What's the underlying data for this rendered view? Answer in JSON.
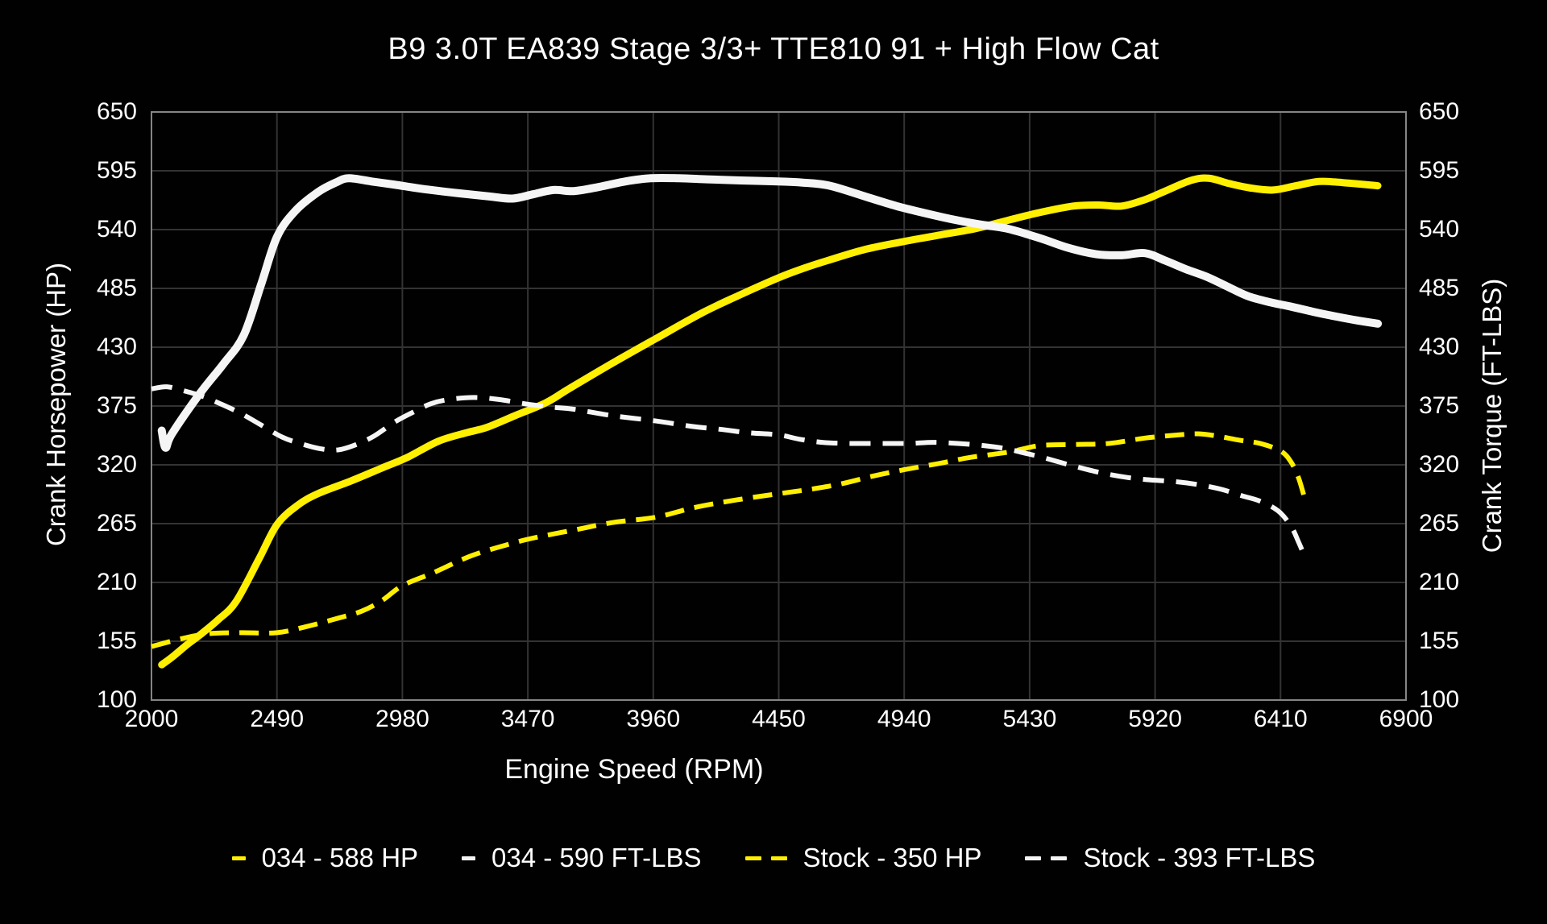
{
  "title": "B9 3.0T EA839 Stage 3/3+ TTE810 91 + High Flow Cat",
  "colors": {
    "background": "#010101",
    "grid": "#333333",
    "border": "#858585",
    "text": "#ffffff",
    "yellow": "#ffef00",
    "white": "#f5f5f5"
  },
  "chart_data": {
    "type": "line",
    "title": "B9 3.0T EA839 Stage 3/3+ TTE810 91 + High Flow Cat",
    "xlabel": "Engine Speed (RPM)",
    "ylabel_left": "Crank Horsepower (HP)",
    "ylabel_right": "Crank Torque (FT-LBS)",
    "xlim": [
      2000,
      6900
    ],
    "ylim": [
      100,
      650
    ],
    "x_ticks": [
      2000,
      2490,
      2980,
      3470,
      3960,
      4450,
      4940,
      5430,
      5920,
      6410,
      6900
    ],
    "y_ticks": [
      650,
      595,
      540,
      485,
      430,
      375,
      320,
      265,
      210,
      155,
      100
    ],
    "grid": true,
    "legend_position": "bottom",
    "series": [
      {
        "name": "034 - 588 HP",
        "color": "#ffef00",
        "style": "solid",
        "width": 9,
        "axis": "left",
        "points": [
          [
            2040,
            133
          ],
          [
            2080,
            140
          ],
          [
            2140,
            152
          ],
          [
            2190,
            161
          ],
          [
            2260,
            175
          ],
          [
            2330,
            192
          ],
          [
            2420,
            232
          ],
          [
            2490,
            264
          ],
          [
            2570,
            282
          ],
          [
            2650,
            293
          ],
          [
            2780,
            305
          ],
          [
            2900,
            317
          ],
          [
            3000,
            327
          ],
          [
            3120,
            342
          ],
          [
            3230,
            350
          ],
          [
            3310,
            355
          ],
          [
            3420,
            366
          ],
          [
            3540,
            378
          ],
          [
            3630,
            391
          ],
          [
            3800,
            415
          ],
          [
            3970,
            438
          ],
          [
            4150,
            462
          ],
          [
            4290,
            478
          ],
          [
            4450,
            495
          ],
          [
            4550,
            504
          ],
          [
            4640,
            511
          ],
          [
            4780,
            521
          ],
          [
            4920,
            528
          ],
          [
            5080,
            535
          ],
          [
            5220,
            541
          ],
          [
            5350,
            549
          ],
          [
            5470,
            556
          ],
          [
            5600,
            562
          ],
          [
            5700,
            563
          ],
          [
            5790,
            562
          ],
          [
            5880,
            568
          ],
          [
            5950,
            575
          ],
          [
            6060,
            586
          ],
          [
            6130,
            588
          ],
          [
            6210,
            583
          ],
          [
            6290,
            579
          ],
          [
            6380,
            577
          ],
          [
            6470,
            581
          ],
          [
            6560,
            585
          ],
          [
            6650,
            584
          ],
          [
            6790,
            581
          ]
        ]
      },
      {
        "name": "034 - 590 FT-LBS",
        "color": "#f5f5f5",
        "style": "solid",
        "width": 10,
        "axis": "right",
        "points": [
          [
            2040,
            352
          ],
          [
            2055,
            336
          ],
          [
            2080,
            349
          ],
          [
            2190,
            387
          ],
          [
            2280,
            414
          ],
          [
            2360,
            441
          ],
          [
            2430,
            490
          ],
          [
            2490,
            533
          ],
          [
            2560,
            557
          ],
          [
            2650,
            575
          ],
          [
            2720,
            584
          ],
          [
            2770,
            588
          ],
          [
            2860,
            585
          ],
          [
            2950,
            582
          ],
          [
            3060,
            578
          ],
          [
            3200,
            574
          ],
          [
            3320,
            571
          ],
          [
            3410,
            569
          ],
          [
            3490,
            573
          ],
          [
            3570,
            577
          ],
          [
            3650,
            576
          ],
          [
            3750,
            580
          ],
          [
            3850,
            585
          ],
          [
            3950,
            588
          ],
          [
            4060,
            588
          ],
          [
            4170,
            587
          ],
          [
            4300,
            586
          ],
          [
            4450,
            585
          ],
          [
            4540,
            584
          ],
          [
            4650,
            581
          ],
          [
            4800,
            570
          ],
          [
            4910,
            562
          ],
          [
            5010,
            556
          ],
          [
            5120,
            550
          ],
          [
            5230,
            545
          ],
          [
            5340,
            541
          ],
          [
            5470,
            532
          ],
          [
            5580,
            523
          ],
          [
            5690,
            517
          ],
          [
            5790,
            516
          ],
          [
            5880,
            518
          ],
          [
            5960,
            511
          ],
          [
            6040,
            503
          ],
          [
            6120,
            496
          ],
          [
            6200,
            487
          ],
          [
            6280,
            478
          ],
          [
            6370,
            472
          ],
          [
            6450,
            468
          ],
          [
            6540,
            463
          ],
          [
            6620,
            459
          ],
          [
            6710,
            455
          ],
          [
            6790,
            452
          ]
        ]
      },
      {
        "name": "Stock - 350 HP",
        "color": "#ffef00",
        "style": "dashed",
        "width": 6,
        "dash": "24 13",
        "axis": "left",
        "points": [
          [
            2000,
            150
          ],
          [
            2110,
            157
          ],
          [
            2220,
            162
          ],
          [
            2350,
            163
          ],
          [
            2490,
            163
          ],
          [
            2610,
            169
          ],
          [
            2720,
            176
          ],
          [
            2820,
            183
          ],
          [
            2900,
            193
          ],
          [
            2980,
            207
          ],
          [
            3100,
            219
          ],
          [
            3250,
            235
          ],
          [
            3400,
            246
          ],
          [
            3500,
            252
          ],
          [
            3650,
            259
          ],
          [
            3800,
            266
          ],
          [
            3970,
            271
          ],
          [
            4120,
            280
          ],
          [
            4280,
            287
          ],
          [
            4450,
            293
          ],
          [
            4570,
            297
          ],
          [
            4690,
            302
          ],
          [
            4810,
            309
          ],
          [
            4930,
            315
          ],
          [
            5070,
            321
          ],
          [
            5200,
            327
          ],
          [
            5350,
            332
          ],
          [
            5470,
            338
          ],
          [
            5610,
            339
          ],
          [
            5740,
            340
          ],
          [
            5880,
            345
          ],
          [
            6010,
            348
          ],
          [
            6090,
            349
          ],
          [
            6160,
            347
          ],
          [
            6250,
            343
          ],
          [
            6330,
            340
          ],
          [
            6410,
            333
          ],
          [
            6450,
            323
          ],
          [
            6480,
            308
          ],
          [
            6505,
            288
          ]
        ]
      },
      {
        "name": "Stock - 393 FT-LBS",
        "color": "#f5f5f5",
        "style": "dashed",
        "width": 6,
        "dash": "26 15",
        "axis": "right",
        "points": [
          [
            2000,
            391
          ],
          [
            2060,
            393
          ],
          [
            2130,
            389
          ],
          [
            2200,
            384
          ],
          [
            2270,
            377
          ],
          [
            2350,
            368
          ],
          [
            2430,
            357
          ],
          [
            2510,
            346
          ],
          [
            2580,
            340
          ],
          [
            2660,
            335
          ],
          [
            2730,
            334
          ],
          [
            2800,
            339
          ],
          [
            2870,
            347
          ],
          [
            2950,
            360
          ],
          [
            3020,
            369
          ],
          [
            3090,
            377
          ],
          [
            3160,
            381
          ],
          [
            3260,
            383
          ],
          [
            3360,
            381
          ],
          [
            3460,
            377
          ],
          [
            3560,
            374
          ],
          [
            3650,
            372
          ],
          [
            3800,
            366
          ],
          [
            3970,
            361
          ],
          [
            4110,
            356
          ],
          [
            4230,
            353
          ],
          [
            4330,
            350
          ],
          [
            4450,
            348
          ],
          [
            4530,
            344
          ],
          [
            4620,
            341
          ],
          [
            4720,
            340
          ],
          [
            4850,
            340
          ],
          [
            4960,
            340
          ],
          [
            5050,
            341
          ],
          [
            5150,
            340
          ],
          [
            5250,
            338
          ],
          [
            5340,
            335
          ],
          [
            5410,
            331
          ],
          [
            5480,
            327
          ],
          [
            5600,
            319
          ],
          [
            5720,
            312
          ],
          [
            5850,
            307
          ],
          [
            6010,
            304
          ],
          [
            6100,
            301
          ],
          [
            6180,
            297
          ],
          [
            6260,
            291
          ],
          [
            6330,
            286
          ],
          [
            6400,
            277
          ],
          [
            6450,
            263
          ],
          [
            6480,
            248
          ],
          [
            6510,
            231
          ]
        ]
      }
    ]
  }
}
